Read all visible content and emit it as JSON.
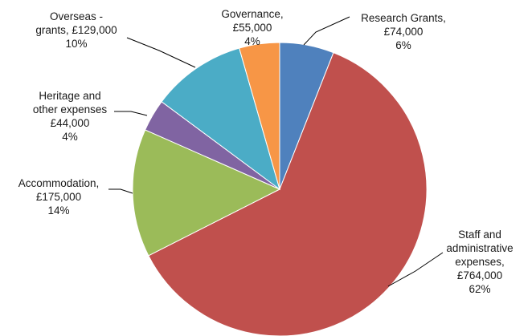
{
  "chart_data": {
    "type": "pie",
    "title": "",
    "slices": [
      {
        "label_lines": [
          "Research Grants,",
          "£74,000"
        ],
        "value": 74000,
        "percent": "6%",
        "color": "#4f81bd"
      },
      {
        "label_lines": [
          "Staff and",
          "administrative",
          "expenses,",
          "£764,000"
        ],
        "value": 764000,
        "percent": "62%",
        "color": "#c0504d"
      },
      {
        "label_lines": [
          "Accommodation,",
          "£175,000"
        ],
        "value": 175000,
        "percent": "14%",
        "color": "#9bbb59"
      },
      {
        "label_lines": [
          "Heritage and",
          "other expenses",
          "£44,000"
        ],
        "value": 44000,
        "percent": "4%",
        "color": "#8064a2"
      },
      {
        "label_lines": [
          "Overseas -",
          "grants, £129,000"
        ],
        "value": 129000,
        "percent": "10%",
        "color": "#4bacc6"
      },
      {
        "label_lines": [
          "Governance,",
          "£55,000"
        ],
        "value": 55000,
        "percent": "4%",
        "color": "#f79646"
      }
    ]
  }
}
